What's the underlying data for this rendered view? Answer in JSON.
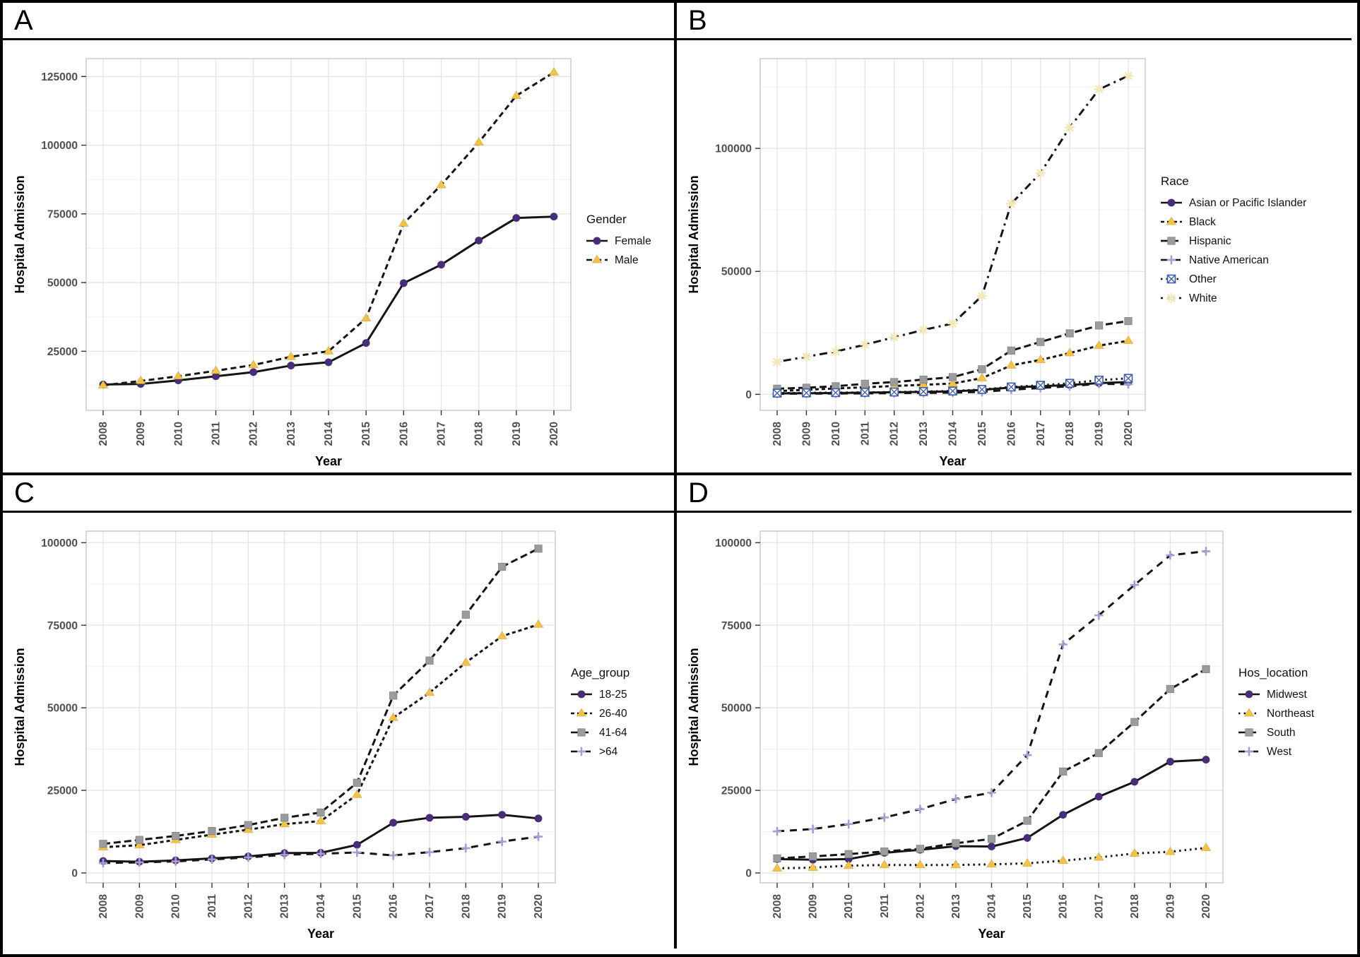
{
  "figure": {
    "y_axis_label": "Hospital Admission",
    "x_axis_label": "Year"
  },
  "chart_data": [
    {
      "panel": "A",
      "type": "line",
      "legend_title": "Gender",
      "x": [
        2008,
        2009,
        2010,
        2011,
        2012,
        2013,
        2014,
        2015,
        2016,
        2017,
        2018,
        2019,
        2020
      ],
      "xlabel": "Year",
      "ylabel": "Hospital Admission",
      "y_ticks": [
        25000,
        50000,
        75000,
        100000,
        125000
      ],
      "ylim": [
        3500,
        131500
      ],
      "y_minor_step": 12500,
      "grid": true,
      "legend_position": "right",
      "series": [
        {
          "name": "Female",
          "marker": "circle",
          "color": "#472D7B",
          "linetype": "solid",
          "values": [
            12900,
            13100,
            14400,
            15900,
            17400,
            19800,
            21000,
            28000,
            49800,
            56500,
            65300,
            73500,
            74000
          ]
        },
        {
          "name": "Male",
          "marker": "triangle",
          "color": "#F5C242",
          "linetype": "dashed",
          "values": [
            12600,
            14200,
            15900,
            17900,
            20000,
            23000,
            25000,
            37000,
            71500,
            85500,
            101000,
            118000,
            126500
          ]
        }
      ]
    },
    {
      "panel": "B",
      "type": "line",
      "legend_title": "Race",
      "x": [
        2008,
        2009,
        2010,
        2011,
        2012,
        2013,
        2014,
        2015,
        2016,
        2017,
        2018,
        2019,
        2020
      ],
      "xlabel": "Year",
      "ylabel": "Hospital Admission",
      "y_ticks": [
        0,
        50000,
        100000
      ],
      "ylim": [
        -6500,
        136500
      ],
      "y_minor_step": 25000,
      "grid": true,
      "legend_position": "right",
      "series": [
        {
          "name": "Asian or Pacific Islander",
          "marker": "circle",
          "color": "#472D7B",
          "linetype": "solid",
          "values": [
            400,
            450,
            550,
            700,
            850,
            1000,
            1200,
            1800,
            2800,
            3300,
            3800,
            4600,
            5000
          ]
        },
        {
          "name": "Black",
          "marker": "triangle",
          "color": "#F5C242",
          "linetype": "short-dash",
          "values": [
            1300,
            1900,
            2400,
            2900,
            3400,
            3900,
            4400,
            6600,
            11800,
            14000,
            16800,
            19800,
            21800
          ]
        },
        {
          "name": "Hispanic",
          "marker": "square",
          "color": "#9C9C9C",
          "linetype": "medium-dash",
          "values": [
            2300,
            2700,
            3300,
            4300,
            5000,
            6000,
            7000,
            10200,
            17800,
            21300,
            24800,
            28000,
            29800
          ]
        },
        {
          "name": "Native American",
          "marker": "plus",
          "color": "#A99BD6",
          "linetype": "long-dash",
          "values": [
            250,
            300,
            350,
            420,
            500,
            600,
            700,
            1000,
            1900,
            2600,
            3300,
            4300,
            4100
          ]
        },
        {
          "name": "Other",
          "marker": "boxed-x",
          "color": "#3E5BA9",
          "linetype": "dotted",
          "values": [
            500,
            600,
            700,
            800,
            950,
            1150,
            1350,
            2000,
            3000,
            3700,
            4500,
            5800,
            6500
          ]
        },
        {
          "name": "White",
          "marker": "asterisk",
          "color": "#F2E8B8",
          "linetype": "dash-dot",
          "values": [
            13200,
            15300,
            17400,
            20200,
            23200,
            26200,
            28800,
            40000,
            77500,
            90000,
            108500,
            124000,
            129500
          ]
        }
      ]
    },
    {
      "panel": "C",
      "type": "line",
      "legend_title": "Age_group",
      "x": [
        2008,
        2009,
        2010,
        2011,
        2012,
        2013,
        2014,
        2015,
        2016,
        2017,
        2018,
        2019,
        2020
      ],
      "xlabel": "Year",
      "ylabel": "Hospital Admission",
      "y_ticks": [
        0,
        25000,
        50000,
        75000,
        100000
      ],
      "ylim": [
        -3000,
        103500
      ],
      "y_minor_step": 12500,
      "grid": true,
      "legend_position": "right",
      "series": [
        {
          "name": "18-25",
          "marker": "circle",
          "color": "#472D7B",
          "linetype": "solid",
          "values": [
            3600,
            3400,
            3800,
            4400,
            5000,
            6000,
            6100,
            8500,
            15200,
            16700,
            17000,
            17600,
            16500
          ]
        },
        {
          "name": "26-40",
          "marker": "triangle",
          "color": "#F5C242",
          "linetype": "short-dash",
          "values": [
            7800,
            8400,
            10000,
            11600,
            13100,
            14800,
            15700,
            23700,
            47000,
            54600,
            63700,
            71700,
            75200
          ]
        },
        {
          "name": "41-64",
          "marker": "square",
          "color": "#9C9C9C",
          "linetype": "medium-dash",
          "values": [
            8800,
            10000,
            11200,
            12700,
            14500,
            16700,
            18300,
            27300,
            53700,
            64300,
            78200,
            92700,
            98200
          ]
        },
        {
          "name": ">64",
          "marker": "plus",
          "color": "#A99BD6",
          "linetype": "long-dash",
          "values": [
            3000,
            3200,
            3500,
            4100,
            4700,
            5500,
            5800,
            6200,
            5300,
            6300,
            7500,
            9500,
            11000
          ]
        }
      ]
    },
    {
      "panel": "D",
      "type": "line",
      "legend_title": "Hos_location",
      "x": [
        2008,
        2009,
        2010,
        2011,
        2012,
        2013,
        2014,
        2015,
        2016,
        2017,
        2018,
        2019,
        2020
      ],
      "xlabel": "Year",
      "ylabel": "Hospital Admission",
      "y_ticks": [
        0,
        25000,
        50000,
        75000,
        100000
      ],
      "ylim": [
        -3000,
        103500
      ],
      "y_minor_step": 12500,
      "grid": true,
      "legend_position": "right",
      "series": [
        {
          "name": "Midwest",
          "marker": "circle",
          "color": "#472D7B",
          "linetype": "solid",
          "values": [
            4200,
            4000,
            4200,
            6100,
            7000,
            8100,
            8000,
            10600,
            17600,
            23100,
            27600,
            33700,
            34300
          ]
        },
        {
          "name": "Northeast",
          "marker": "triangle",
          "color": "#F5C242",
          "linetype": "dotted",
          "values": [
            1400,
            1600,
            2200,
            2400,
            2400,
            2400,
            2600,
            2900,
            3700,
            4700,
            5900,
            6400,
            7600
          ]
        },
        {
          "name": "South",
          "marker": "square",
          "color": "#9C9C9C",
          "linetype": "medium-dash",
          "values": [
            4400,
            5000,
            5700,
            6500,
            7300,
            9000,
            10300,
            15800,
            30700,
            36300,
            45700,
            55700,
            61700
          ]
        },
        {
          "name": "West",
          "marker": "plus",
          "color": "#A99BD6",
          "linetype": "long-dash",
          "values": [
            12600,
            13300,
            14800,
            16800,
            19300,
            22400,
            24300,
            35700,
            69200,
            78000,
            87200,
            96200,
            97400
          ]
        }
      ]
    }
  ],
  "style_colors": {
    "line": "#141414",
    "grid_major": "#e4e4e4",
    "grid_minor": "#f1f1f1",
    "panel_border": "#cfcfcf",
    "tick_text": "#4f4f4f",
    "axis_title": "#000000"
  }
}
